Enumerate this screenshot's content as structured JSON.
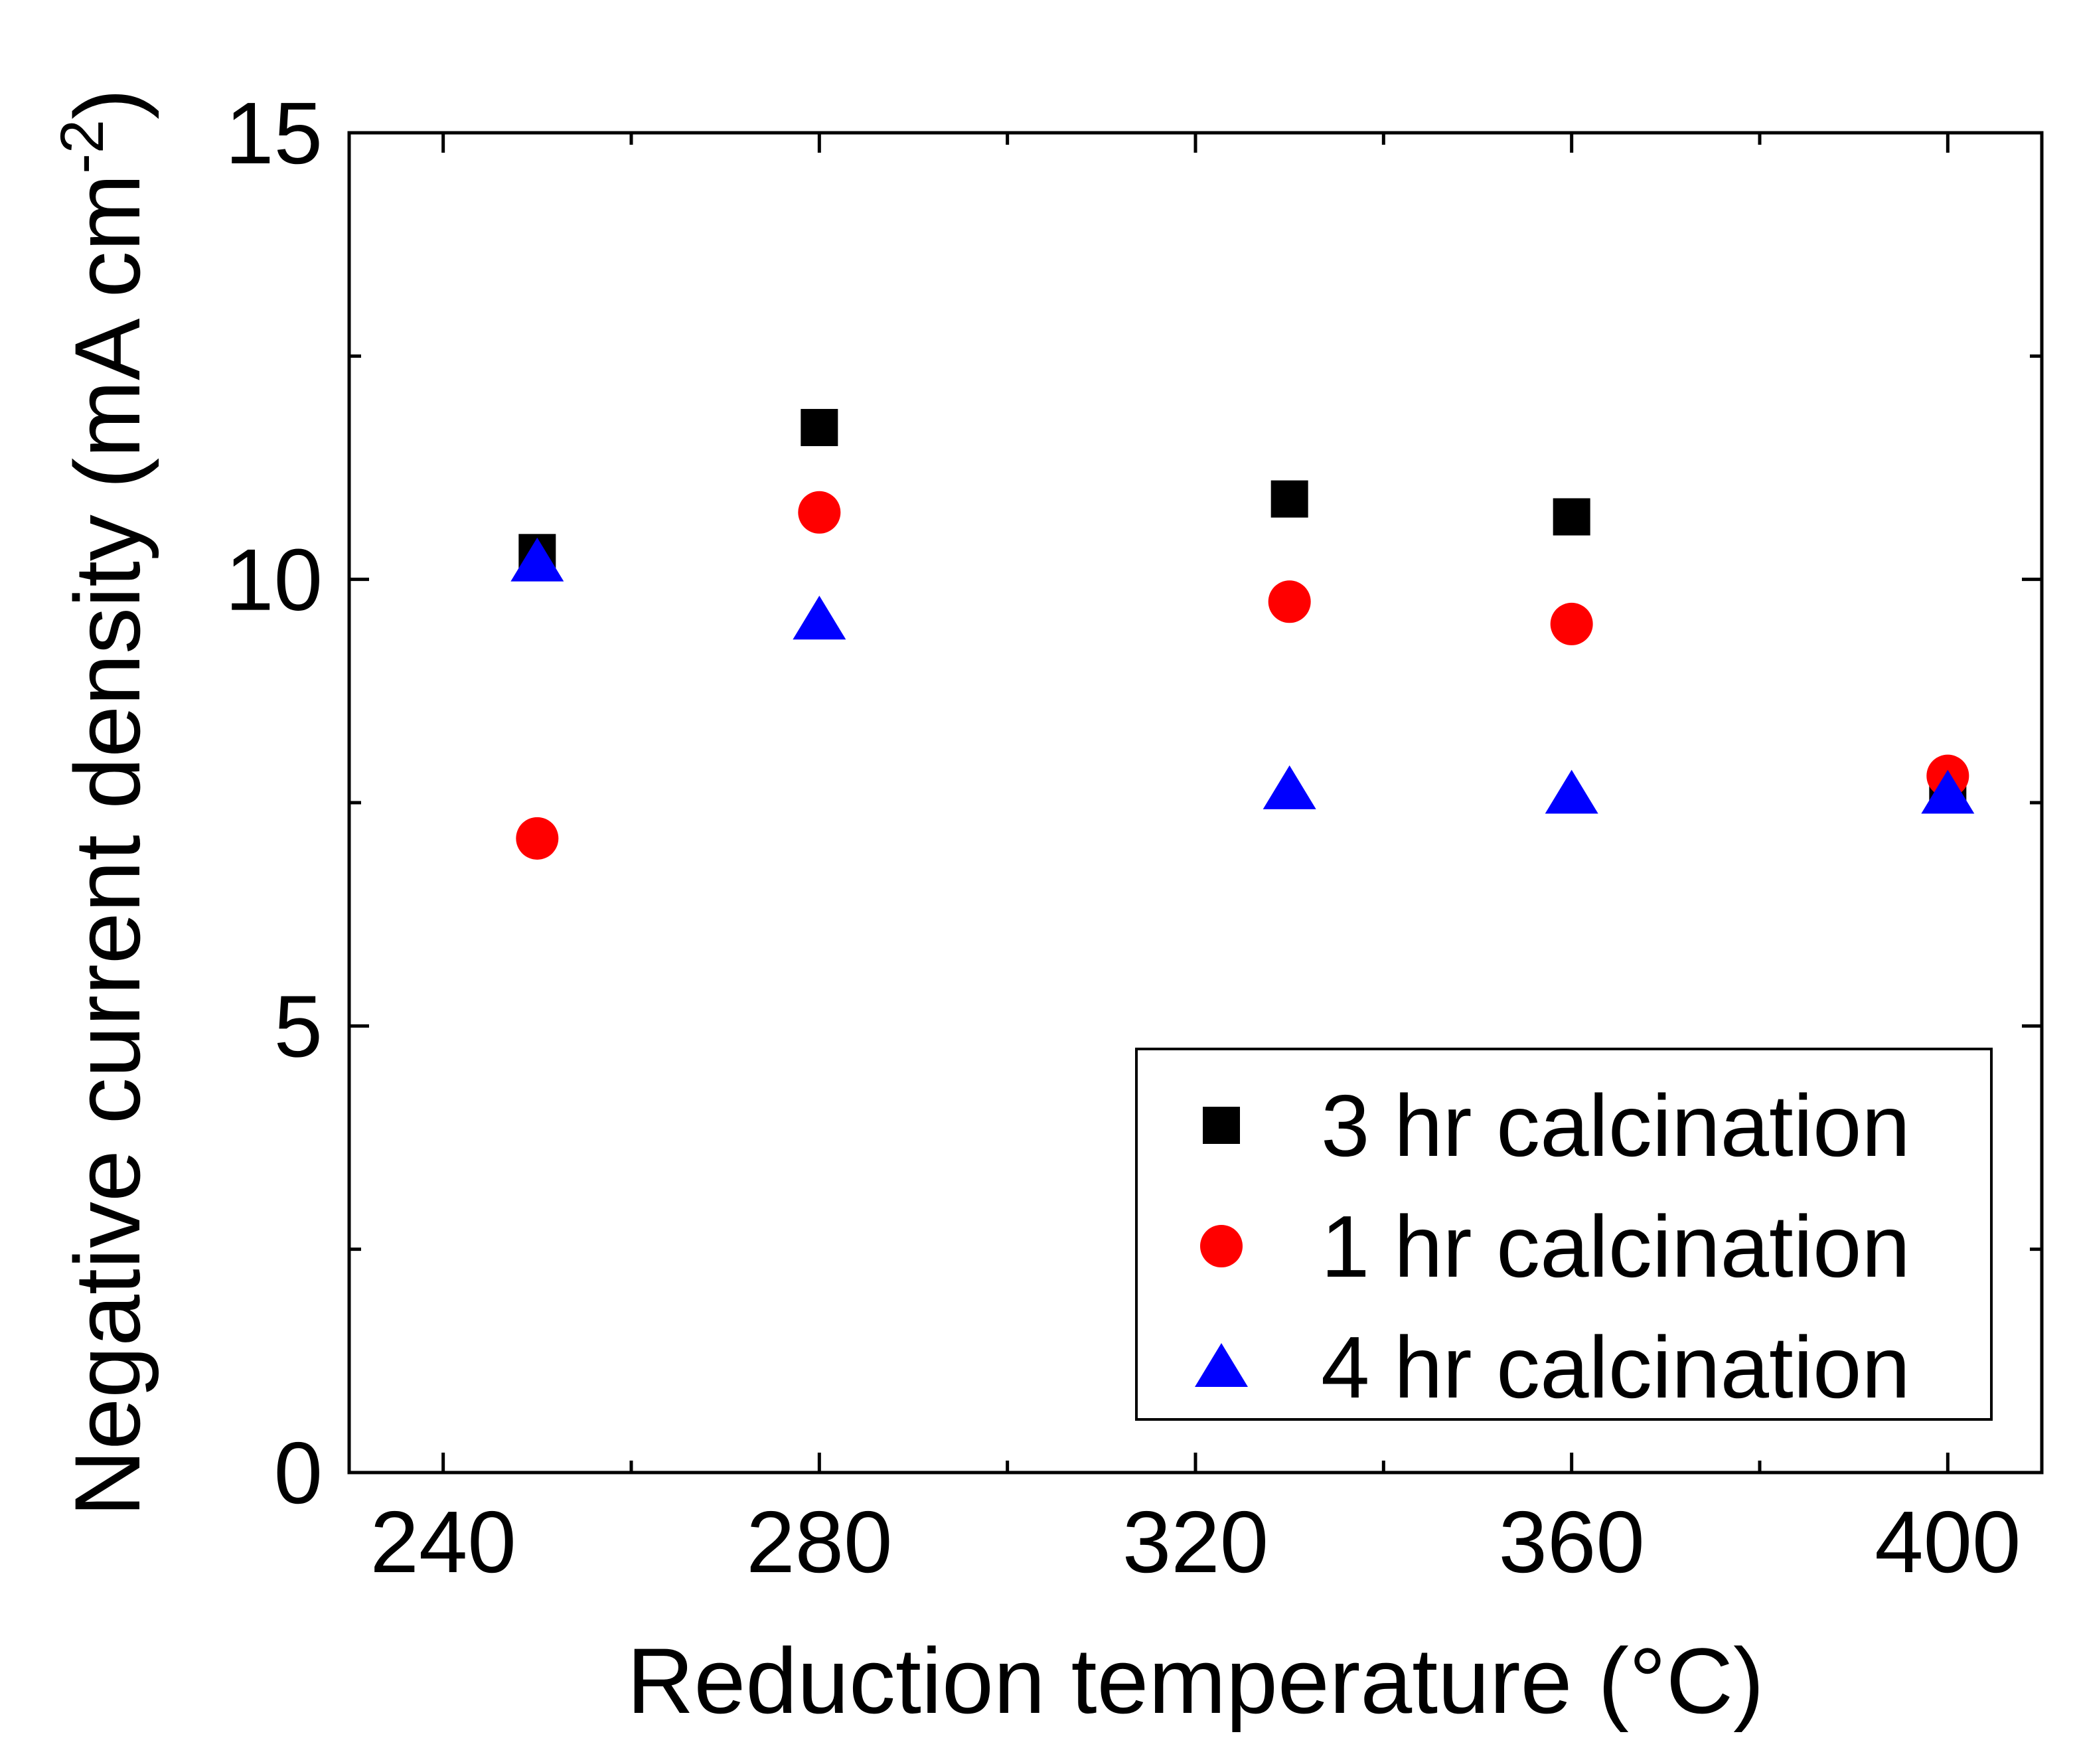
{
  "chart_data": {
    "type": "scatter",
    "title": "",
    "xlabel": "Reduction temperature (°C)",
    "ylabel": "Negative current density (mA cm",
    "ylabel_sup": "-2",
    "ylabel_close": ")",
    "xlim": [
      230,
      410
    ],
    "ylim": [
      0,
      15
    ],
    "xticks": [
      240,
      280,
      320,
      360,
      400
    ],
    "yticks": [
      0,
      5,
      10,
      15
    ],
    "xtick_labels": [
      "240",
      "280",
      "320",
      "360",
      "400"
    ],
    "ytick_labels": [
      "0",
      "5",
      "10",
      "15"
    ],
    "x_minor_ticks": [
      260,
      300,
      340,
      380
    ],
    "y_minor_ticks": [
      2.5,
      7.5,
      12.5
    ],
    "legend_position": "bottom-right",
    "series": [
      {
        "name": "3 hr calcination",
        "marker": "square",
        "color": "#000000",
        "x": [
          250,
          280,
          330,
          360,
          400
        ],
        "y": [
          10.3,
          11.7,
          10.9,
          10.7,
          7.65
        ]
      },
      {
        "name": "1 hr calcination",
        "marker": "circle",
        "color": "#ff0000",
        "x": [
          250,
          280,
          330,
          360,
          400
        ],
        "y": [
          7.1,
          10.75,
          9.75,
          9.5,
          7.8
        ]
      },
      {
        "name": "4 hr calcination",
        "marker": "triangle",
        "color": "#0000ff",
        "x": [
          250,
          280,
          330,
          360,
          400
        ],
        "y": [
          10.2,
          9.55,
          7.65,
          7.6,
          7.6
        ]
      }
    ]
  }
}
